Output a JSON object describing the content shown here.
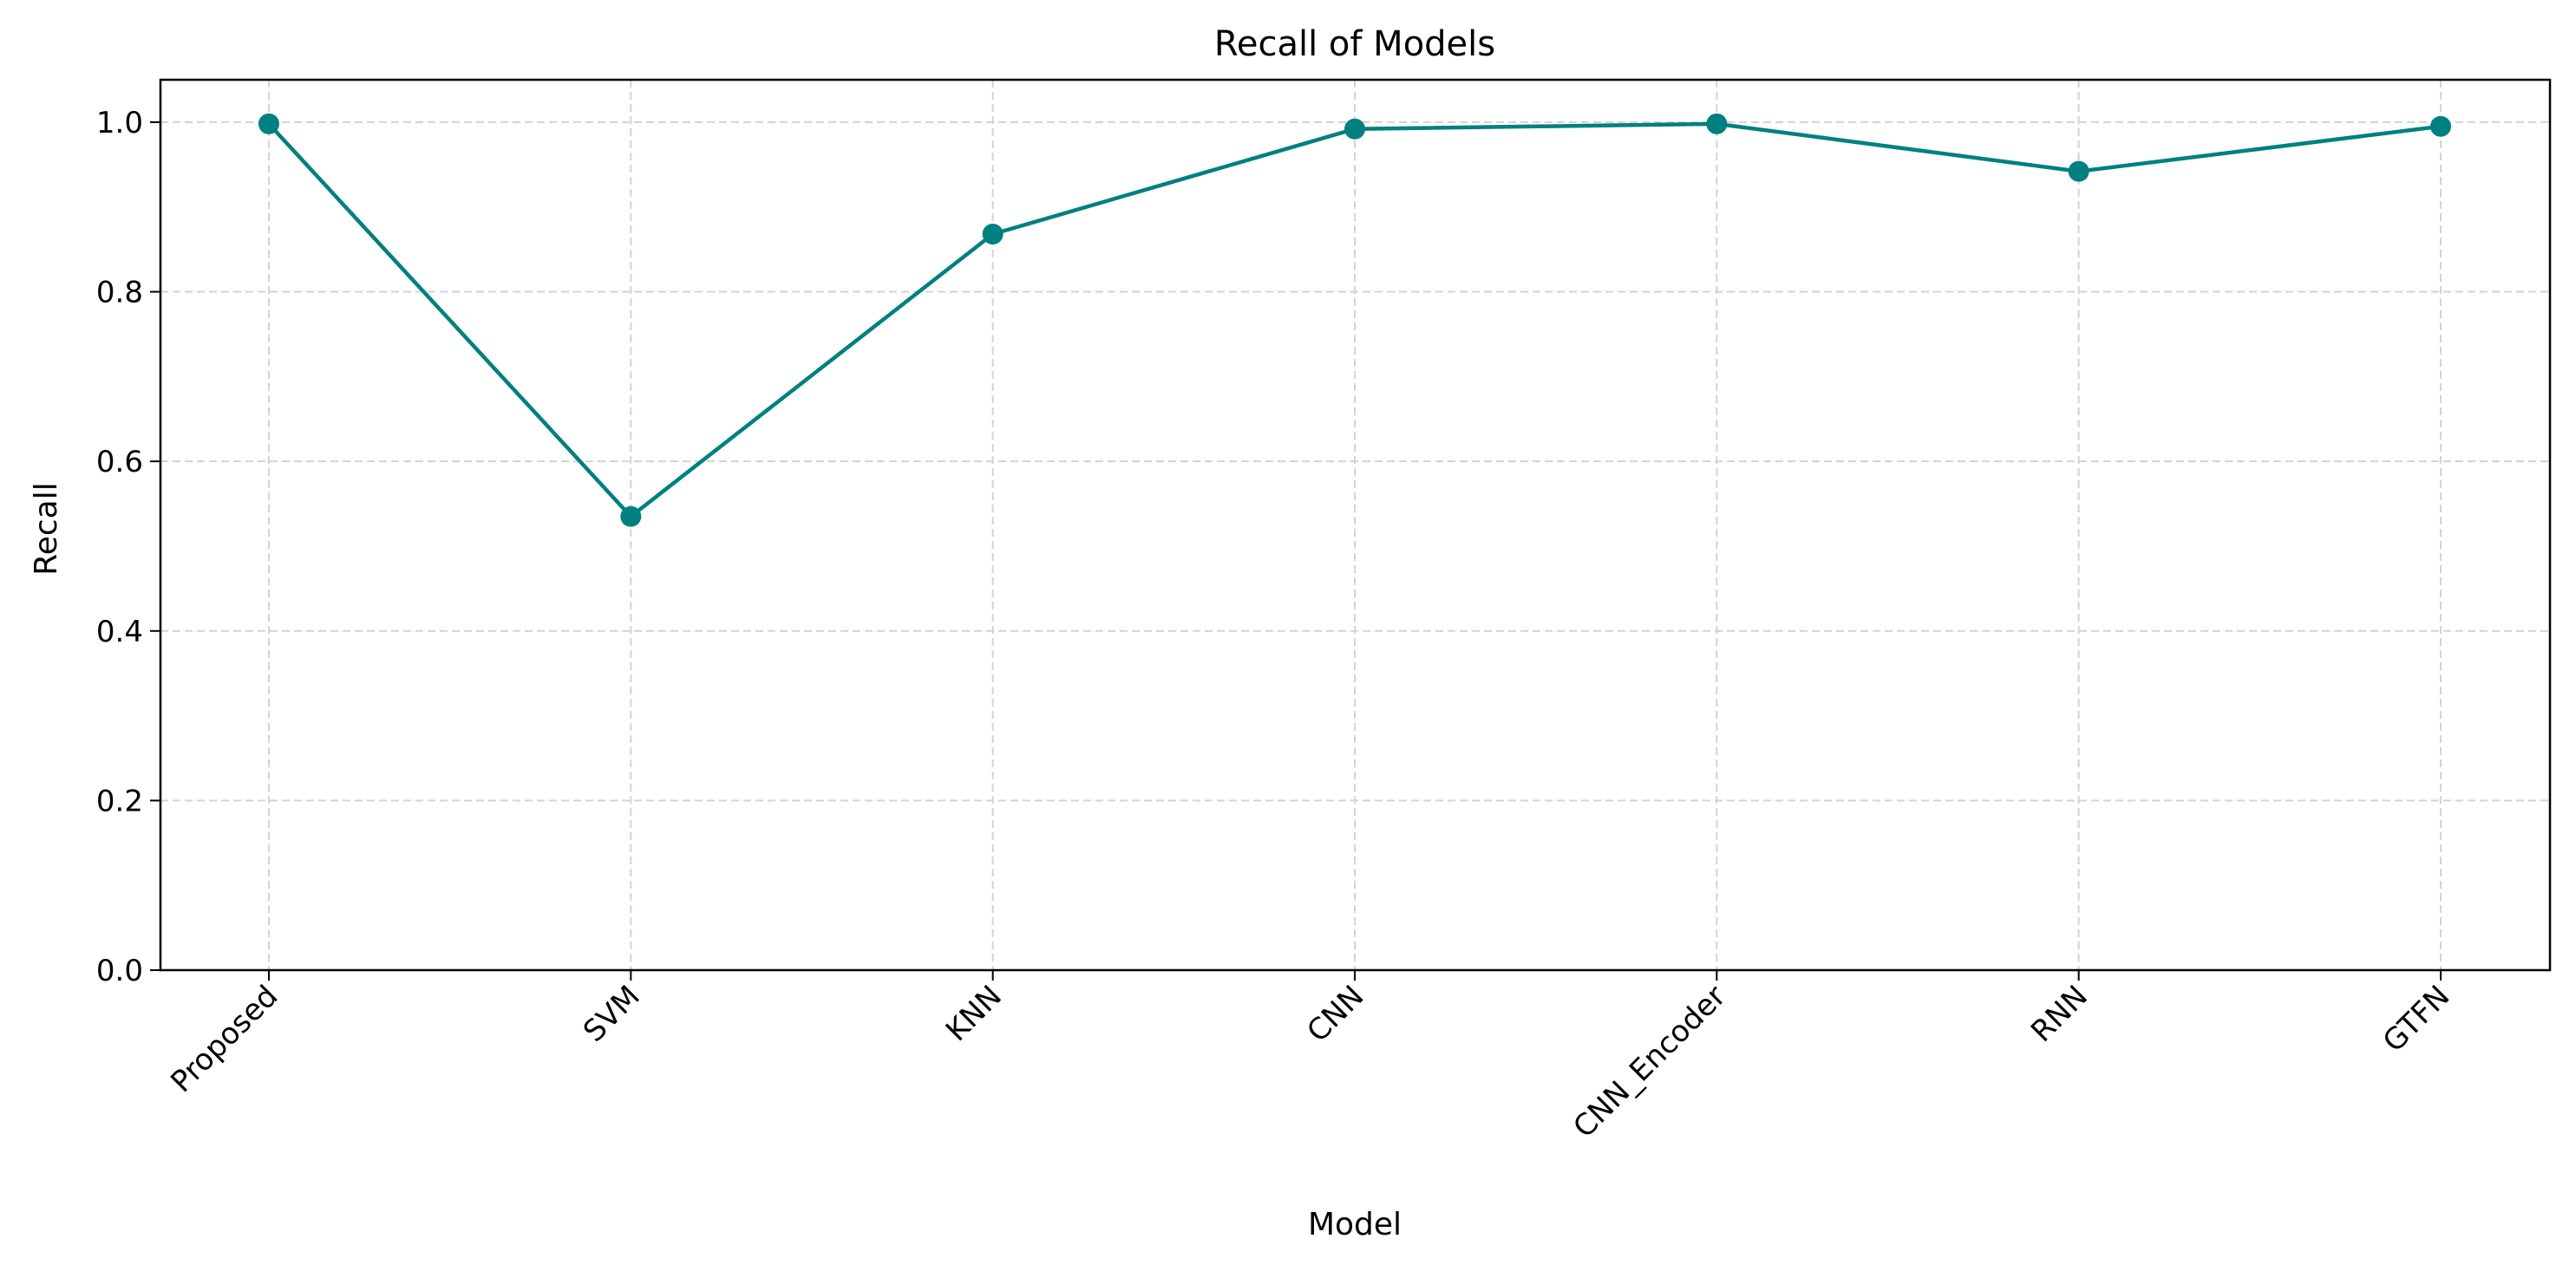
{
  "chart_data": {
    "type": "line",
    "title": "Recall of Models",
    "xlabel": "Model",
    "ylabel": "Recall",
    "categories": [
      "Proposed",
      "SVM",
      "KNN",
      "CNN",
      "CNN_Encoder",
      "RNN",
      "GTFN"
    ],
    "series": [
      {
        "values": [
          0.998,
          0.535,
          0.868,
          0.992,
          0.998,
          0.942,
          0.995
        ],
        "color": "#008080",
        "marker": "circle"
      }
    ],
    "ylim": [
      0,
      1.05
    ],
    "yticks": [
      "0.0",
      "0.2",
      "0.4",
      "0.6",
      "0.8",
      "1.0"
    ],
    "grid": true,
    "grid_style": "dashed",
    "xtick_rotation": "45 degrees"
  }
}
